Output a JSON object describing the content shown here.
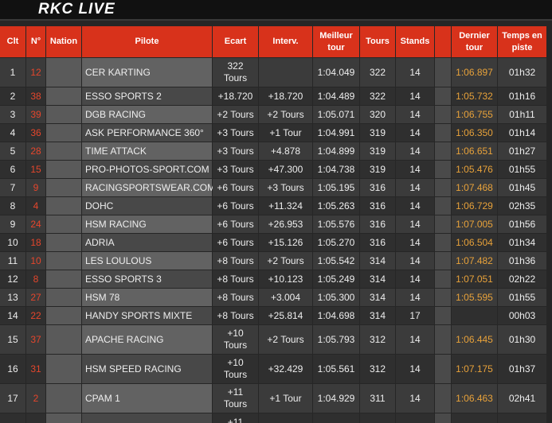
{
  "header": {
    "title": "RKC LIVE"
  },
  "table": {
    "columns": [
      "Clt",
      "N°",
      "Nation",
      "Pilote",
      "Ecart",
      "Interv.",
      "Meilleur tour",
      "Tours",
      "Stands",
      "Dernier tour",
      "Temps en piste"
    ],
    "rows": [
      {
        "clt": 1,
        "num": 12,
        "pilote": "CER KARTING",
        "ecart": "322 Tours",
        "meilleur": "1:04.049",
        "tours": 322,
        "stands": 14,
        "dernier": "1:06.897",
        "temps": "01h32"
      },
      {
        "clt": 2,
        "num": 38,
        "pilote": "ESSO SPORTS 2",
        "ecart": "+18.720",
        "interv": "+18.720",
        "meilleur": "1:04.489",
        "tours": 322,
        "stands": 14,
        "dernier": "1:05.732",
        "temps": "01h16"
      },
      {
        "clt": 3,
        "num": 39,
        "pilote": "DGB RACING",
        "ecart": "+2 Tours",
        "interv": "+2 Tours",
        "meilleur": "1:05.071",
        "tours": 320,
        "stands": 14,
        "dernier": "1:06.755",
        "temps": "01h11"
      },
      {
        "clt": 4,
        "num": 36,
        "pilote": "ASK PERFORMANCE 360°",
        "ecart": "+3 Tours",
        "interv": "+1 Tour",
        "meilleur": "1:04.991",
        "tours": 319,
        "stands": 14,
        "dernier": "1:06.350",
        "temps": "01h14"
      },
      {
        "clt": 5,
        "num": 28,
        "pilote": "TIME ATTACK",
        "ecart": "+3 Tours",
        "interv": "+4.878",
        "meilleur": "1:04.899",
        "tours": 319,
        "stands": 14,
        "dernier": "1:06.651",
        "temps": "01h27"
      },
      {
        "clt": 6,
        "num": 15,
        "pilote": "PRO-PHOTOS-SPORT.COM",
        "ecart": "+3 Tours",
        "interv": "+47.300",
        "meilleur": "1:04.738",
        "tours": 319,
        "stands": 14,
        "dernier": "1:05.476",
        "temps": "01h55"
      },
      {
        "clt": 7,
        "num": 9,
        "pilote": "RACINGSPORTSWEAR.COM",
        "ecart": "+6 Tours",
        "interv": "+3 Tours",
        "meilleur": "1:05.195",
        "tours": 316,
        "stands": 14,
        "dernier": "1:07.468",
        "temps": "01h45"
      },
      {
        "clt": 8,
        "num": 4,
        "pilote": "DOHC",
        "ecart": "+6 Tours",
        "interv": "+11.324",
        "meilleur": "1:05.263",
        "tours": 316,
        "stands": 14,
        "dernier": "1:06.729",
        "temps": "02h35"
      },
      {
        "clt": 9,
        "num": 24,
        "pilote": "HSM RACING",
        "ecart": "+6 Tours",
        "interv": "+26.953",
        "meilleur": "1:05.576",
        "tours": 316,
        "stands": 14,
        "dernier": "1:07.005",
        "temps": "01h56"
      },
      {
        "clt": 10,
        "num": 18,
        "pilote": "ADRIA",
        "ecart": "+6 Tours",
        "interv": "+15.126",
        "meilleur": "1:05.270",
        "tours": 316,
        "stands": 14,
        "dernier": "1:06.504",
        "temps": "01h34"
      },
      {
        "clt": 11,
        "num": 10,
        "pilote": "LES LOULOUS",
        "ecart": "+8 Tours",
        "interv": "+2 Tours",
        "meilleur": "1:05.542",
        "tours": 314,
        "stands": 14,
        "dernier": "1:07.482",
        "temps": "01h36"
      },
      {
        "clt": 12,
        "num": 8,
        "pilote": "ESSO SPORTS 3",
        "ecart": "+8 Tours",
        "interv": "+10.123",
        "meilleur": "1:05.249",
        "tours": 314,
        "stands": 14,
        "dernier": "1:07.051",
        "temps": "02h22"
      },
      {
        "clt": 13,
        "num": 27,
        "pilote": "HSM 78",
        "ecart": "+8 Tours",
        "interv": "+3.004",
        "meilleur": "1:05.300",
        "tours": 314,
        "stands": 14,
        "dernier": "1:05.595",
        "temps": "01h55"
      },
      {
        "clt": 14,
        "num": 22,
        "pilote": "HANDY SPORTS MIXTE",
        "ecart": "+8 Tours",
        "interv": "+25.814",
        "meilleur": "1:04.698",
        "tours": 314,
        "stands": 17,
        "temps": "00h03"
      },
      {
        "clt": 15,
        "num": 37,
        "pilote": "APACHE RACING",
        "ecart": "+10 Tours",
        "interv": "+2 Tours",
        "meilleur": "1:05.793",
        "tours": 312,
        "stands": 14,
        "dernier": "1:06.445",
        "temps": "01h30"
      },
      {
        "clt": 16,
        "num": 31,
        "pilote": "HSM SPEED RACING",
        "ecart": "+10 Tours",
        "interv": "+32.429",
        "meilleur": "1:05.561",
        "tours": 312,
        "stands": 14,
        "dernier": "1:07.175",
        "temps": "01h37"
      },
      {
        "clt": 17,
        "num": 2,
        "pilote": "CPAM 1",
        "ecart": "+11 Tours",
        "interv": "+1 Tour",
        "meilleur": "1:04.929",
        "tours": 311,
        "stands": 14,
        "dernier": "1:06.463",
        "temps": "02h41"
      },
      {
        "ecart": "+11"
      }
    ]
  }
}
